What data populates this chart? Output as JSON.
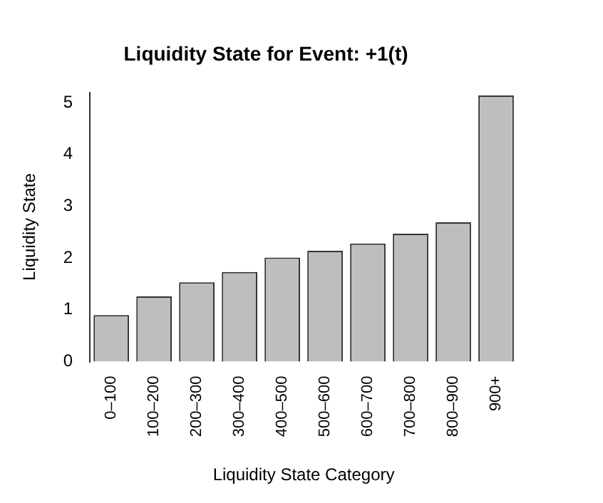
{
  "chart_data": {
    "type": "bar",
    "title": "Liquidity State for Event: +1(t)",
    "xlabel": "Liquidity State Category",
    "ylabel": "Liquidity State",
    "categories": [
      "0–100",
      "100–200",
      "200–300",
      "300–400",
      "400–500",
      "500–600",
      "600–700",
      "700–800",
      "800–900",
      "900+"
    ],
    "values": [
      0.9,
      1.26,
      1.53,
      1.73,
      2.01,
      2.14,
      2.28,
      2.47,
      2.69,
      5.14
    ],
    "color": "#bebebe",
    "ylim": [
      0,
      5.2
    ],
    "yticks": [
      0,
      1,
      2,
      3,
      4,
      5
    ],
    "grid": false,
    "legend": false
  }
}
